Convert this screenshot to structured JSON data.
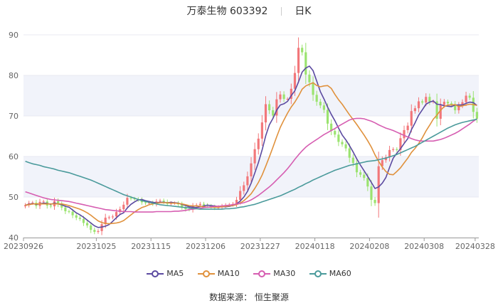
{
  "header": {
    "stock_name": "万泰生物",
    "stock_code": "603392",
    "period": "日K"
  },
  "source_text": "数据来源： 恒生聚源",
  "colors": {
    "up": "#f2777a",
    "down": "#9be36f",
    "ma5": "#5b4aa0",
    "ma10": "#e0913c",
    "ma30": "#d65db1",
    "ma60": "#4a9a9b",
    "band": "#f1f3fa",
    "axis": "#999999"
  },
  "chart_data": {
    "type": "candlestick",
    "ylim": [
      40,
      90
    ],
    "yticks": [
      40,
      50,
      60,
      70,
      80,
      90
    ],
    "xticks": [
      "20230926",
      "20231025",
      "20231115",
      "20231206",
      "20231227",
      "20240118",
      "20240208",
      "20240308",
      "20240328"
    ],
    "tick_index": [
      0,
      20,
      35,
      50,
      65,
      80,
      95,
      110,
      124
    ],
    "legend": [
      "MA5",
      "MA10",
      "MA30",
      "MA60"
    ],
    "closes": [
      48.0,
      48.5,
      48.6,
      47.8,
      48.8,
      48.9,
      47.9,
      47.7,
      49.0,
      48.2,
      47.4,
      46.5,
      46.4,
      45.5,
      44.9,
      44.6,
      43.6,
      43.0,
      41.9,
      41.4,
      41.6,
      43.3,
      44.9,
      45.0,
      45.2,
      46.3,
      47.0,
      48.1,
      49.8,
      49.6,
      49.5,
      49.3,
      48.7,
      48.5,
      48.6,
      48.3,
      48.9,
      49.1,
      48.8,
      48.3,
      48.5,
      48.5,
      48.2,
      47.5,
      47.0,
      46.9,
      47.8,
      48.0,
      48.3,
      48.0,
      47.8,
      47.6,
      47.3,
      47.5,
      47.8,
      48.0,
      48.1,
      48.3,
      49.3,
      51.5,
      52.9,
      55.1,
      58.3,
      61.8,
      64.4,
      68.4,
      72.9,
      71.4,
      70.1,
      74.1,
      75.3,
      74.2,
      74.2,
      76.7,
      80.6,
      86.8,
      85.7,
      80.2,
      78.3,
      75.2,
      73.5,
      72.6,
      71.5,
      68.1,
      66.3,
      65.4,
      63.6,
      63.0,
      62.0,
      59.7,
      58.4,
      56.1,
      55.5,
      54.7,
      52.6,
      49.3,
      48.5,
      57.6,
      59.1,
      59.8,
      61.6,
      61.8,
      61.6,
      64.5,
      66.5,
      67.6,
      71.2,
      71.9,
      73.6,
      73.3,
      74.7,
      73.5,
      73.6,
      69.3,
      72.7,
      73.5,
      73.1,
      72.8,
      71.4,
      72.6,
      73.4,
      75.0,
      74.5,
      71.0,
      69.3
    ],
    "ma5": [
      48.0,
      48.2,
      48.4,
      48.2,
      48.3,
      48.5,
      48.4,
      48.2,
      48.5,
      48.3,
      48.1,
      47.7,
      47.5,
      46.8,
      46.1,
      45.6,
      45.0,
      44.3,
      43.6,
      42.9,
      42.5,
      42.6,
      42.8,
      43.2,
      44.0,
      44.9,
      45.7,
      46.1,
      47.3,
      48.2,
      48.8,
      49.3,
      49.4,
      49.1,
      48.9,
      48.7,
      48.6,
      48.7,
      48.7,
      48.6,
      48.7,
      48.6,
      48.5,
      48.2,
      47.9,
      47.6,
      47.5,
      47.4,
      47.6,
      47.8,
      48.0,
      47.9,
      47.8,
      47.6,
      47.6,
      47.6,
      47.7,
      47.9,
      48.3,
      49.0,
      50.0,
      51.4,
      53.4,
      55.9,
      58.5,
      61.6,
      65.1,
      67.8,
      69.4,
      71.4,
      72.7,
      73.0,
      73.6,
      75.0,
      76.2,
      78.4,
      80.8,
      81.8,
      82.3,
      81.2,
      78.6,
      76.0,
      74.2,
      72.2,
      70.4,
      68.8,
      67.0,
      65.3,
      64.1,
      62.7,
      61.1,
      59.4,
      57.9,
      56.5,
      55.1,
      53.6,
      52.1,
      52.5,
      53.4,
      54.8,
      57.3,
      59.6,
      60.8,
      61.9,
      63.2,
      64.4,
      66.6,
      68.3,
      70.2,
      71.5,
      72.9,
      73.4,
      73.7,
      72.9,
      72.8,
      72.5,
      72.4,
      72.3,
      72.7,
      72.7,
      72.7,
      73.1,
      73.4,
      73.3,
      72.6
    ],
    "ma10": [
      48.0,
      48.1,
      48.3,
      48.3,
      48.3,
      48.3,
      48.3,
      48.3,
      48.3,
      48.3,
      48.3,
      48.1,
      47.9,
      47.6,
      47.3,
      47.0,
      46.6,
      46.1,
      45.5,
      44.8,
      44.1,
      43.7,
      43.5,
      43.4,
      43.5,
      43.6,
      43.8,
      44.2,
      44.9,
      45.6,
      46.3,
      46.9,
      47.4,
      47.7,
      48.1,
      48.3,
      48.5,
      48.6,
      48.6,
      48.6,
      48.5,
      48.5,
      48.4,
      48.3,
      48.1,
      47.9,
      47.8,
      47.8,
      47.7,
      47.6,
      47.5,
      47.5,
      47.5,
      47.5,
      47.6,
      47.7,
      47.8,
      47.9,
      48.1,
      48.5,
      49.1,
      49.9,
      50.8,
      52.1,
      53.6,
      55.4,
      57.6,
      59.9,
      62.3,
      64.8,
      67.2,
      69.0,
      70.7,
      72.2,
      73.4,
      74.9,
      76.6,
      77.4,
      77.8,
      78.2,
      77.5,
      77.2,
      77.4,
      77.5,
      76.8,
      75.3,
      74.0,
      72.9,
      71.6,
      70.3,
      69.1,
      67.9,
      66.6,
      65.3,
      63.9,
      62.3,
      60.4,
      58.8,
      57.4,
      56.3,
      55.6,
      55.5,
      56.3,
      57.2,
      58.4,
      59.6,
      61.0,
      62.0,
      63.2,
      64.6,
      66.3,
      67.7,
      69.2,
      70.2,
      71.4,
      72.3,
      72.7,
      72.7,
      72.8,
      72.3,
      72.5,
      72.7,
      72.9,
      72.8,
      72.6
    ],
    "ma30": [
      51.3,
      51.0,
      50.7,
      50.4,
      50.1,
      49.8,
      49.6,
      49.4,
      49.3,
      49.2,
      49.1,
      49.0,
      48.9,
      48.7,
      48.5,
      48.3,
      48.1,
      47.9,
      47.7,
      47.5,
      47.3,
      47.1,
      46.9,
      46.8,
      46.7,
      46.6,
      46.5,
      46.4,
      46.4,
      46.4,
      46.3,
      46.3,
      46.3,
      46.3,
      46.3,
      46.3,
      46.4,
      46.4,
      46.4,
      46.4,
      46.4,
      46.5,
      46.5,
      46.6,
      46.7,
      46.9,
      47.0,
      47.1,
      47.2,
      47.4,
      47.5,
      47.6,
      47.7,
      47.7,
      47.8,
      47.9,
      48.0,
      48.1,
      48.3,
      48.4,
      48.6,
      48.9,
      49.3,
      49.8,
      50.4,
      51.1,
      51.8,
      52.5,
      53.3,
      54.2,
      55.1,
      56.0,
      57.0,
      58.1,
      59.3,
      60.4,
      61.4,
      62.3,
      63.0,
      63.6,
      64.2,
      64.8,
      65.4,
      65.9,
      66.4,
      66.9,
      67.5,
      68.0,
      68.5,
      69.0,
      69.3,
      69.4,
      69.4,
      69.3,
      69.0,
      68.7,
      68.3,
      67.8,
      67.4,
      67.0,
      66.7,
      66.4,
      66.0,
      65.6,
      65.2,
      64.8,
      64.4,
      64.1,
      63.9,
      63.8,
      63.8,
      63.8,
      63.8,
      64.0,
      64.2,
      64.5,
      64.9,
      65.3,
      65.7,
      66.2,
      66.8,
      67.4,
      68.0,
      68.7,
      69.3
    ],
    "ma60": [
      58.8,
      58.5,
      58.2,
      58.0,
      57.8,
      57.5,
      57.3,
      57.1,
      56.9,
      56.6,
      56.4,
      56.2,
      56.0,
      55.7,
      55.4,
      55.1,
      54.8,
      54.5,
      54.2,
      53.8,
      53.4,
      53.0,
      52.6,
      52.2,
      51.8,
      51.4,
      51.0,
      50.6,
      50.3,
      50.0,
      49.7,
      49.4,
      49.1,
      48.9,
      48.7,
      48.5,
      48.3,
      48.1,
      48.0,
      47.9,
      47.8,
      47.7,
      47.6,
      47.5,
      47.4,
      47.3,
      47.2,
      47.1,
      47.0,
      47.0,
      47.0,
      47.0,
      47.0,
      47.0,
      47.0,
      47.1,
      47.1,
      47.2,
      47.3,
      47.5,
      47.6,
      47.8,
      48.0,
      48.2,
      48.5,
      48.8,
      49.1,
      49.4,
      49.7,
      50.0,
      50.3,
      50.7,
      51.1,
      51.5,
      51.9,
      52.4,
      52.8,
      53.3,
      53.7,
      54.2,
      54.6,
      55.0,
      55.4,
      55.8,
      56.2,
      56.6,
      56.9,
      57.2,
      57.5,
      57.8,
      58.0,
      58.2,
      58.4,
      58.6,
      58.8,
      58.9,
      59.0,
      59.2,
      59.4,
      59.6,
      59.9,
      60.2,
      60.5,
      60.9,
      61.3,
      61.7,
      62.1,
      62.5,
      63.0,
      63.5,
      64.0,
      64.5,
      65.0,
      65.5,
      66.0,
      66.5,
      67.0,
      67.4,
      67.8,
      68.1,
      68.4,
      68.6,
      68.8,
      69.0,
      69.2
    ]
  }
}
